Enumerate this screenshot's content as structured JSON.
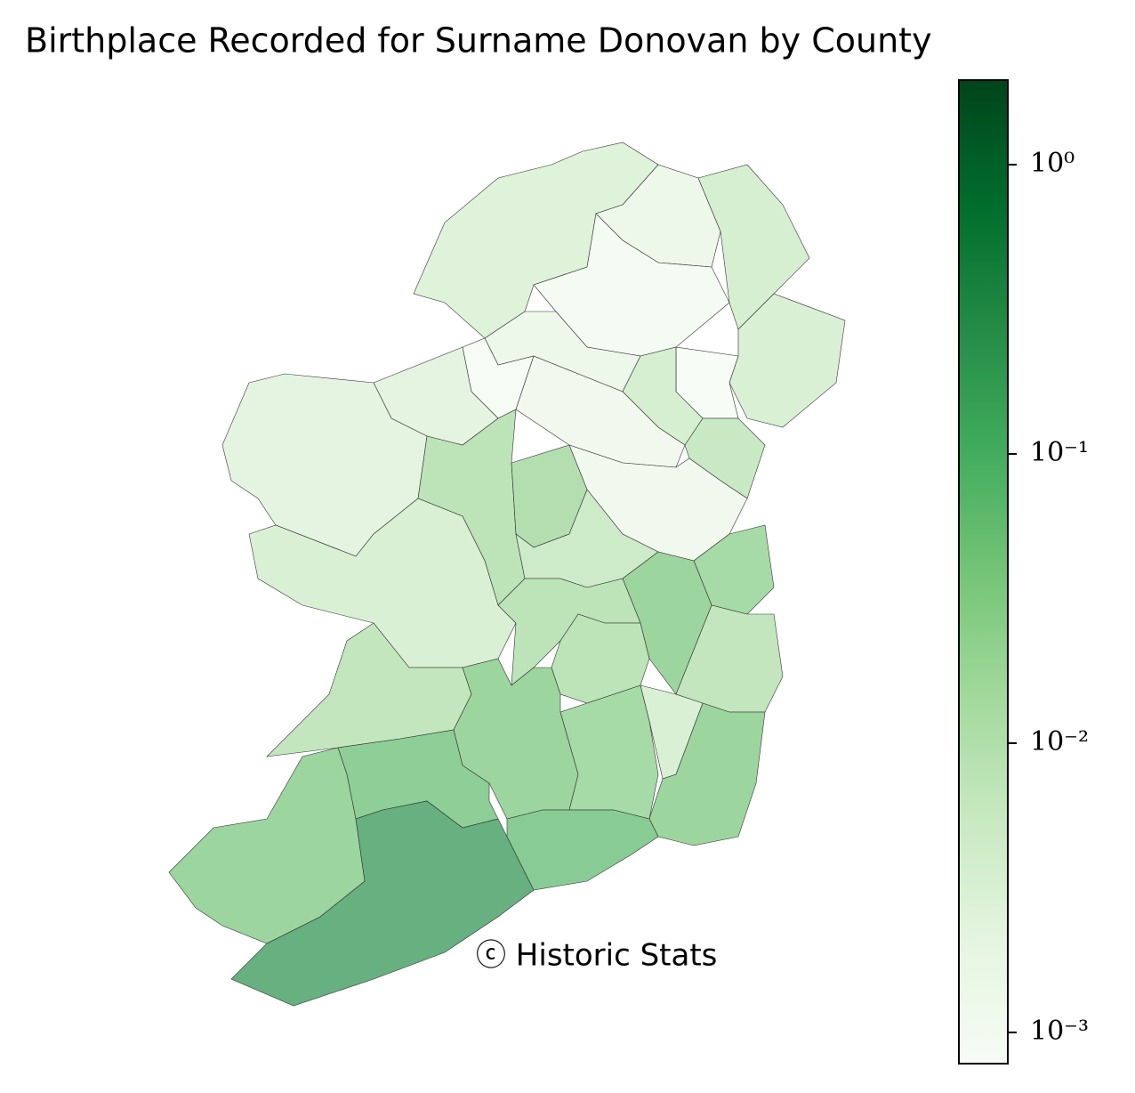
{
  "chart_data": {
    "type": "choropleth",
    "title": "Birthplace Recorded for Surname Donovan by County",
    "annotation": "ⓒ Historic Stats",
    "values": [
      0.004,
      0.002,
      0.006,
      0.0012,
      0.005,
      0.0009,
      0.002,
      0.006,
      0.01,
      0.001,
      0.0015,
      0.003,
      0.003,
      0.015,
      0.02,
      0.0015,
      0.008,
      0.005,
      0.03,
      0.04,
      0.015,
      0.015,
      0.012,
      0.012,
      0.04,
      0.03,
      0.005,
      0.04,
      0.06,
      0.04,
      0.25,
      0.07
    ],
    "colormap": [
      "#f7fcf5",
      "#e5f5e0",
      "#c7e9c0",
      "#a1d99b",
      "#74c476",
      "#41ab5d",
      "#238b45",
      "#006d2c",
      "#00441b"
    ],
    "alpha": 0.7,
    "log_scale": true,
    "ylim": [
      0.00078,
      1.96
    ],
    "yticks": [
      {
        "value": 1,
        "label": "10⁰"
      },
      {
        "value": 0.1,
        "label": "10⁻¹"
      },
      {
        "value": 0.01,
        "label": "10⁻²"
      },
      {
        "value": 0.001,
        "label": "10⁻³"
      }
    ]
  }
}
